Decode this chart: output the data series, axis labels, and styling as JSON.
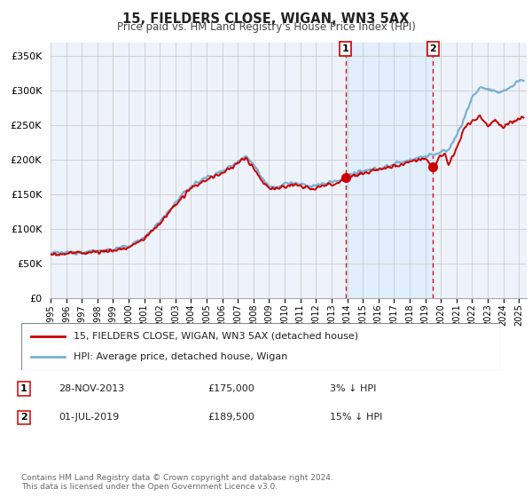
{
  "title": "15, FIELDERS CLOSE, WIGAN, WN3 5AX",
  "subtitle": "Price paid vs. HM Land Registry's House Price Index (HPI)",
  "ylabel_ticks": [
    "£0",
    "£50K",
    "£100K",
    "£150K",
    "£200K",
    "£250K",
    "£300K",
    "£350K"
  ],
  "ytick_values": [
    0,
    50000,
    100000,
    150000,
    200000,
    250000,
    300000,
    350000
  ],
  "ylim": [
    0,
    370000
  ],
  "xlim_start": 1995.0,
  "xlim_end": 2025.5,
  "purchase1_date": 2013.9,
  "purchase1_price": 175000,
  "purchase1_label": "1",
  "purchase2_date": 2019.5,
  "purchase2_price": 189500,
  "purchase2_label": "2",
  "legend_line1": "15, FIELDERS CLOSE, WIGAN, WN3 5AX (detached house)",
  "legend_line2": "HPI: Average price, detached house, Wigan",
  "table_date1": "28-NOV-2013",
  "table_price1": "£175,000",
  "table_pct1": "3% ↓ HPI",
  "table_date2": "01-JUL-2019",
  "table_price2": "£189,500",
  "table_pct2": "15% ↓ HPI",
  "footer": "Contains HM Land Registry data © Crown copyright and database right 2024.\nThis data is licensed under the Open Government Licence v3.0.",
  "line_color_property": "#cc0000",
  "line_color_hpi": "#7ab0d4",
  "shade_color": "#ddeeff",
  "background_plot": "#eef2fa",
  "background_fig": "#ffffff",
  "grid_color": "#cccccc",
  "dashed_line_color": "#cc0000"
}
